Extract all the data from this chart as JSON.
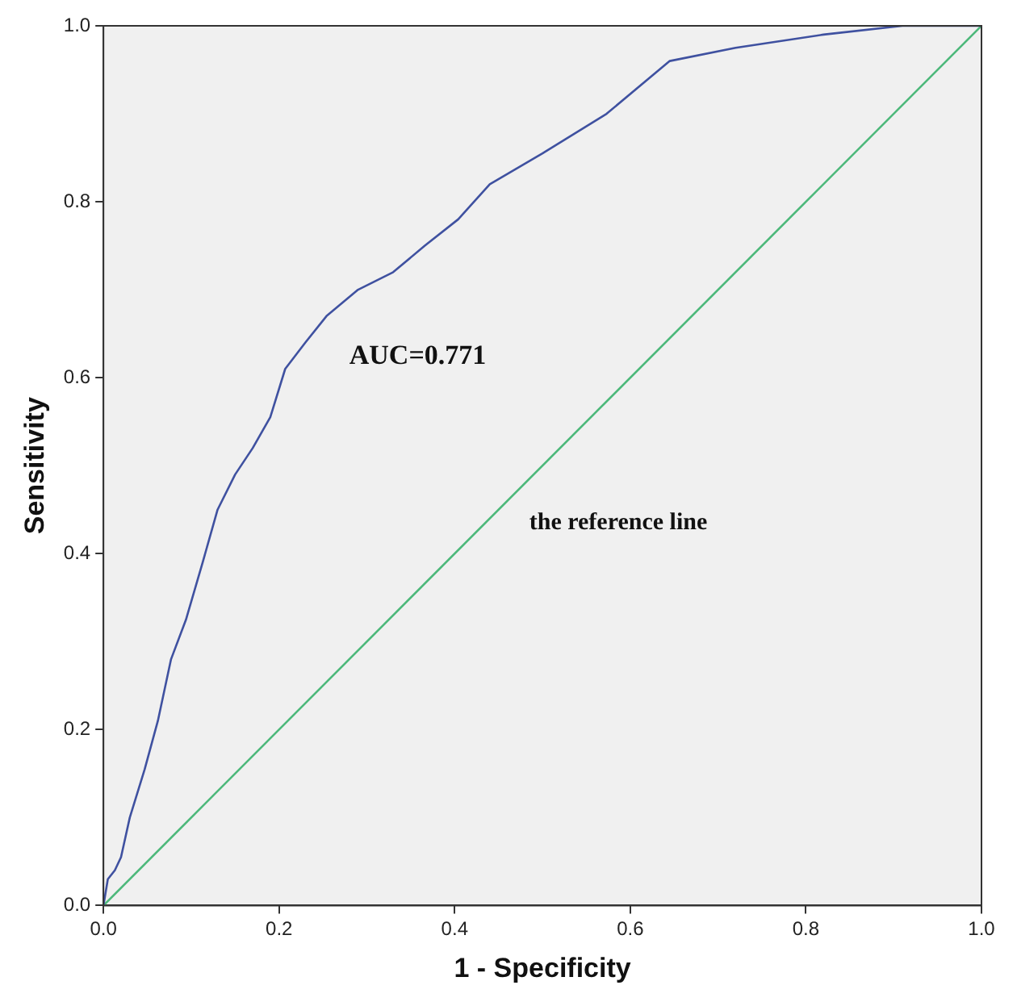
{
  "chart_data": {
    "type": "line",
    "xlabel": "1 - Specificity",
    "ylabel": "Sensitivity",
    "xlim": [
      0,
      1
    ],
    "ylim": [
      0,
      1
    ],
    "xticks": [
      {
        "value": 0,
        "label": "0.0"
      },
      {
        "value": 0.2,
        "label": "0.2"
      },
      {
        "value": 0.4,
        "label": "0.4"
      },
      {
        "value": 0.6,
        "label": "0.6"
      },
      {
        "value": 0.8,
        "label": "0.8"
      },
      {
        "value": 1,
        "label": "1.0"
      }
    ],
    "yticks": [
      {
        "value": 0,
        "label": "0.0"
      },
      {
        "value": 0.2,
        "label": "0.2"
      },
      {
        "value": 0.4,
        "label": "0.4"
      },
      {
        "value": 0.6,
        "label": "0.6"
      },
      {
        "value": 0.8,
        "label": "0.8"
      },
      {
        "value": 1,
        "label": "1.0"
      }
    ],
    "grid": false,
    "legend": false,
    "marker": "none",
    "line_style": "solid",
    "annotations": [
      "AUC=0.771",
      "the reference line"
    ],
    "series": [
      {
        "color": "#3f51a0",
        "x": [
          0,
          0.005,
          0.013,
          0.02,
          0.03,
          0.047,
          0.062,
          0.077,
          0.094,
          0.113,
          0.13,
          0.15,
          0.17,
          0.19,
          0.207,
          0.23,
          0.254,
          0.29,
          0.33,
          0.366,
          0.404,
          0.44,
          0.5,
          0.573,
          0.645,
          0.72,
          0.82,
          0.91,
          1
        ],
        "values": [
          0,
          0.03,
          0.04,
          0.055,
          0.1,
          0.155,
          0.21,
          0.28,
          0.325,
          0.39,
          0.45,
          0.49,
          0.52,
          0.555,
          0.61,
          0.64,
          0.67,
          0.7,
          0.72,
          0.75,
          0.78,
          0.82,
          0.855,
          0.9,
          0.96,
          0.975,
          0.99,
          1,
          1
        ]
      },
      {
        "color": "#4cb87a",
        "x": [
          0,
          1
        ],
        "values": [
          0,
          1
        ]
      }
    ]
  }
}
